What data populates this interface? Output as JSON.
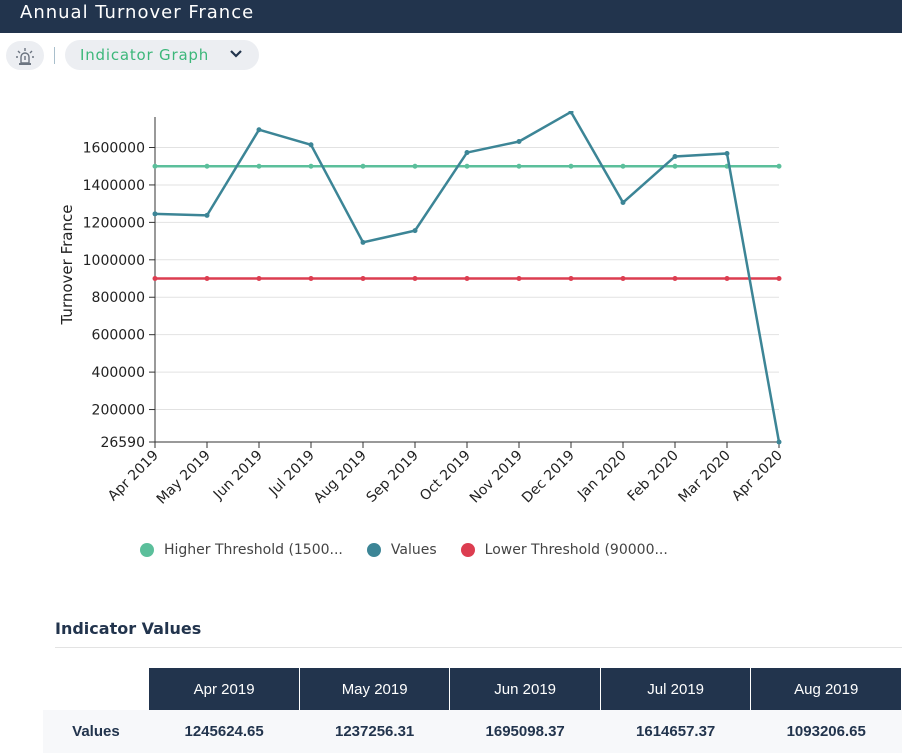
{
  "header": {
    "title": "Annual Turnover France"
  },
  "toolbar": {
    "view_label": "Indicator Graph",
    "alarm_icon": "alarm-light-icon",
    "chevron_icon": "chevron-down-icon"
  },
  "chart_data": {
    "type": "line",
    "ylabel": "Turnover France",
    "xlabel": "",
    "ylim": [
      26590,
      1763000
    ],
    "yticks": [
      26590,
      200000,
      400000,
      600000,
      800000,
      1000000,
      1200000,
      1400000,
      1600000
    ],
    "ytick_labels": [
      "26590",
      "200000",
      "400000",
      "600000",
      "800000",
      "1000000",
      "1200000",
      "1400000",
      "1600000"
    ],
    "categories": [
      "Apr 2019",
      "May 2019",
      "Jun 2019",
      "Jul 2019",
      "Aug 2019",
      "Sep 2019",
      "Oct 2019",
      "Nov 2019",
      "Dec 2019",
      "Jan 2020",
      "Feb 2020",
      "Mar 2020",
      "Apr 2020"
    ],
    "grid": true,
    "legend_position": "bottom",
    "series": [
      {
        "name": "Higher Threshold (1500...",
        "color": "#5bbf9b",
        "values": [
          1500000,
          1500000,
          1500000,
          1500000,
          1500000,
          1500000,
          1500000,
          1500000,
          1500000,
          1500000,
          1500000,
          1500000,
          1500000
        ]
      },
      {
        "name": "Values",
        "color": "#3c8596",
        "values": [
          1245624.65,
          1237256.31,
          1695098.37,
          1614657.37,
          1093206.65,
          1156000,
          1573000,
          1632000,
          1790000,
          1306000,
          1552000,
          1568000,
          26590
        ]
      },
      {
        "name": "Lower Threshold (90000...",
        "color": "#dc3d50",
        "values": [
          900000,
          900000,
          900000,
          900000,
          900000,
          900000,
          900000,
          900000,
          900000,
          900000,
          900000,
          900000,
          900000
        ]
      }
    ]
  },
  "table": {
    "title": "Indicator Values",
    "columns": [
      "Apr 2019",
      "May 2019",
      "Jun 2019",
      "Jul 2019",
      "Aug 2019"
    ],
    "row_label": "Values",
    "values": [
      "1245624.65",
      "1237256.31",
      "1695098.37",
      "1614657.37",
      "1093206.65"
    ]
  }
}
